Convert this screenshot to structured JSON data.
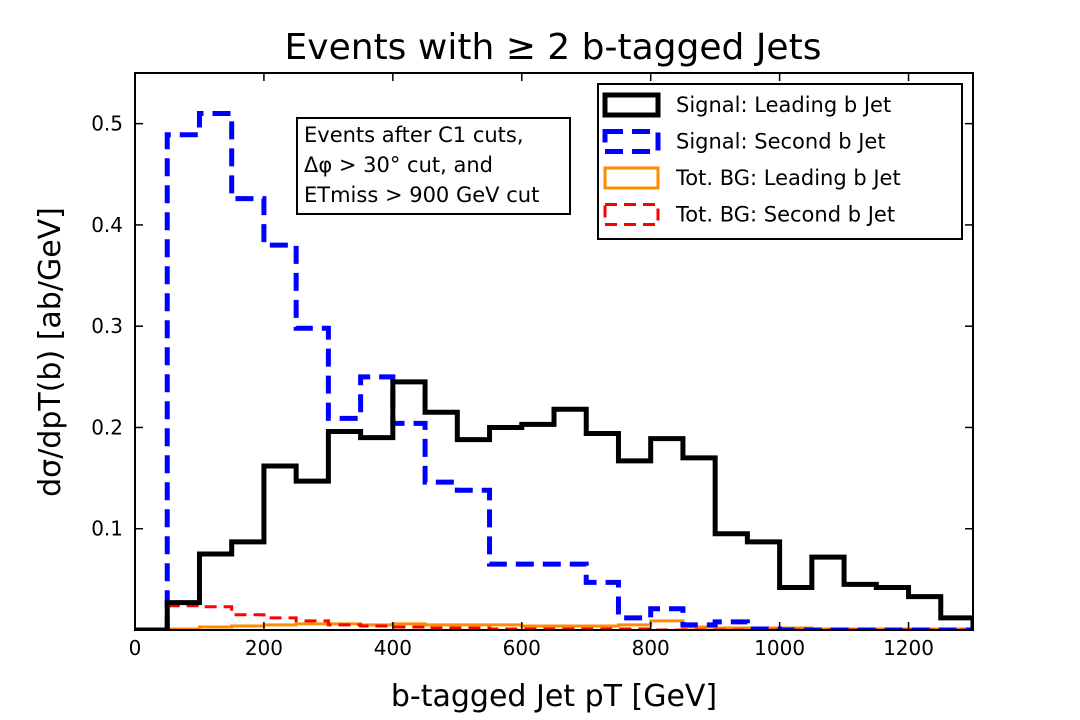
{
  "chart_data": {
    "type": "line",
    "style": "step-histogram",
    "title": "Events with ≥ 2 b-tagged Jets",
    "xlabel": "b-tagged Jet pT [GeV]",
    "ylabel": "dσ/dpT(b) [ab/GeV]",
    "xlim": [
      0,
      1300
    ],
    "ylim": [
      0,
      0.55
    ],
    "xticks": [
      0,
      200,
      400,
      600,
      800,
      1000,
      1200
    ],
    "yticks": [
      0.1,
      0.2,
      0.3,
      0.4,
      0.5
    ],
    "ytick_labels": [
      "0.1",
      "0.2",
      "0.3",
      "0.4",
      "0.5"
    ],
    "annotation": [
      "Events after C1 cuts,",
      "Δφ > 30° cut, and",
      "ETmiss > 900 GeV cut"
    ],
    "legend_position": "top-right",
    "bin_edges": [
      0,
      50,
      100,
      150,
      200,
      250,
      300,
      350,
      400,
      450,
      500,
      550,
      600,
      650,
      700,
      750,
      800,
      850,
      900,
      950,
      1000,
      1050,
      1100,
      1150,
      1200,
      1250,
      1300
    ],
    "series": [
      {
        "name": "Signal: Leading b Jet",
        "color": "#000000",
        "dash": "solid",
        "width": "thick",
        "values": [
          0.0,
          0.027,
          0.075,
          0.087,
          0.162,
          0.147,
          0.196,
          0.19,
          0.245,
          0.215,
          0.188,
          0.2,
          0.203,
          0.218,
          0.194,
          0.167,
          0.189,
          0.17,
          0.095,
          0.087,
          0.042,
          0.072,
          0.045,
          0.042,
          0.033,
          0.012
        ]
      },
      {
        "name": "Signal: Second b Jet",
        "color": "#0000ff",
        "dash": "dashed",
        "width": "thick",
        "values": [
          0.0,
          0.489,
          0.51,
          0.426,
          0.38,
          0.298,
          0.209,
          0.25,
          0.204,
          0.146,
          0.138,
          0.065,
          0.065,
          0.065,
          0.047,
          0.012,
          0.021,
          0.005,
          0.008,
          0.001,
          0.0,
          0.0,
          0.0,
          0.0,
          0.0,
          0.0
        ]
      },
      {
        "name": "Tot. BG: Leading b Jet",
        "color": "#ff8c00",
        "dash": "solid",
        "width": "thin",
        "values": [
          0.0,
          0.001,
          0.003,
          0.004,
          0.005,
          0.006,
          0.006,
          0.005,
          0.006,
          0.005,
          0.005,
          0.005,
          0.004,
          0.004,
          0.004,
          0.005,
          0.009,
          0.003,
          0.002,
          0.002,
          0.002,
          0.001,
          0.001,
          0.001,
          0.001,
          0.001
        ]
      },
      {
        "name": "Tot. BG: Second b Jet",
        "color": "#ff0000",
        "dash": "dashed",
        "width": "thin",
        "values": [
          0.0,
          0.024,
          0.023,
          0.015,
          0.012,
          0.009,
          0.005,
          0.004,
          0.003,
          0.002,
          0.002,
          0.001,
          0.001,
          0.001,
          0.001,
          0.001,
          0.0,
          0.0,
          0.0,
          0.0,
          0.0,
          0.0,
          0.0,
          0.0,
          0.0,
          0.0
        ]
      }
    ]
  }
}
